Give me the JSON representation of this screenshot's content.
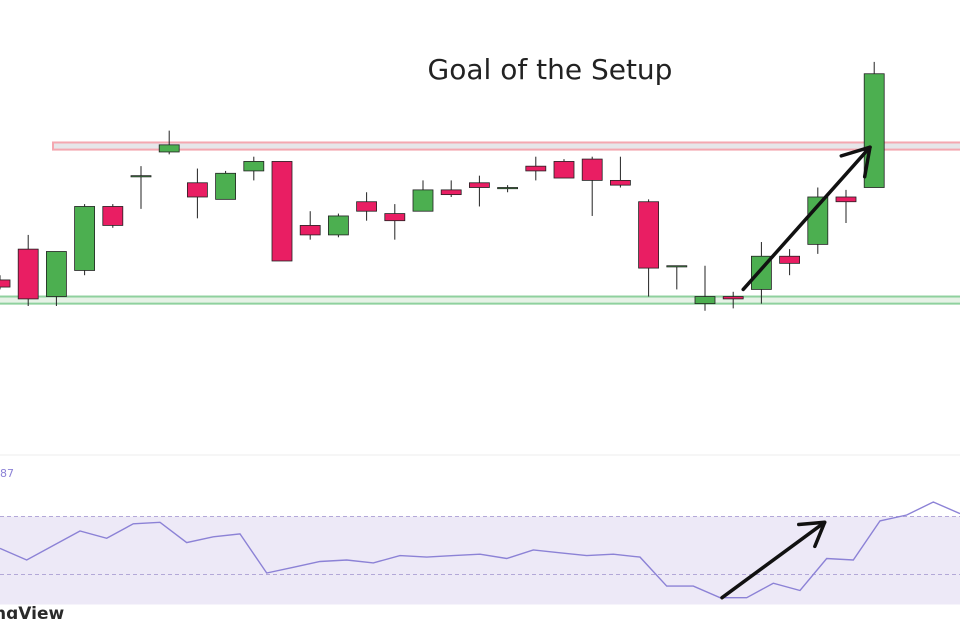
{
  "chart_data": [
    {
      "type": "candlestick",
      "title": "Goal of the Setup",
      "colors": {
        "up": "#4caf50",
        "down": "#e91e63",
        "wick": "#222222",
        "resistance": "#f4a7b0",
        "support": "#8fd19e"
      },
      "ylim": [
        0,
        100
      ],
      "resistance_zone": [
        93,
        96
      ],
      "support_zone": [
        28,
        31
      ],
      "candles": [
        {
          "o": 38,
          "h": 40,
          "l": 34,
          "c": 35
        },
        {
          "o": 51,
          "h": 57,
          "l": 27,
          "c": 30
        },
        {
          "o": 31,
          "h": 50,
          "l": 27,
          "c": 50
        },
        {
          "o": 42,
          "h": 70,
          "l": 40,
          "c": 69
        },
        {
          "o": 69,
          "h": 70,
          "l": 60,
          "c": 61
        },
        {
          "o": 82,
          "h": 86,
          "l": 68,
          "c": 82
        },
        {
          "o": 92,
          "h": 101,
          "l": 91,
          "c": 95
        },
        {
          "o": 79,
          "h": 85,
          "l": 64,
          "c": 73
        },
        {
          "o": 72,
          "h": 84,
          "l": 72,
          "c": 83
        },
        {
          "o": 84,
          "h": 90,
          "l": 80,
          "c": 88
        },
        {
          "o": 88,
          "h": 88,
          "l": 46,
          "c": 46
        },
        {
          "o": 61,
          "h": 67,
          "l": 55,
          "c": 57
        },
        {
          "o": 57,
          "h": 66,
          "l": 56,
          "c": 65
        },
        {
          "o": 71,
          "h": 75,
          "l": 63,
          "c": 67
        },
        {
          "o": 66,
          "h": 70,
          "l": 55,
          "c": 63
        },
        {
          "o": 67,
          "h": 80,
          "l": 67,
          "c": 76
        },
        {
          "o": 76,
          "h": 80,
          "l": 73,
          "c": 74
        },
        {
          "o": 79,
          "h": 82,
          "l": 69,
          "c": 77
        },
        {
          "o": 77,
          "h": 78,
          "l": 75,
          "c": 77
        },
        {
          "o": 86,
          "h": 90,
          "l": 80,
          "c": 84
        },
        {
          "o": 88,
          "h": 89,
          "l": 81,
          "c": 81
        },
        {
          "o": 89,
          "h": 90,
          "l": 65,
          "c": 80
        },
        {
          "o": 80,
          "h": 90,
          "l": 77,
          "c": 78
        },
        {
          "o": 71,
          "h": 72,
          "l": 31,
          "c": 43
        },
        {
          "o": 44,
          "h": 44,
          "l": 34,
          "c": 44
        },
        {
          "o": 28,
          "h": 44,
          "l": 25,
          "c": 31
        },
        {
          "o": 31,
          "h": 33,
          "l": 26,
          "c": 30
        },
        {
          "o": 34,
          "h": 54,
          "l": 28,
          "c": 48
        },
        {
          "o": 48,
          "h": 51,
          "l": 40,
          "c": 45
        },
        {
          "o": 53,
          "h": 77,
          "l": 49,
          "c": 73
        },
        {
          "o": 73,
          "h": 76,
          "l": 62,
          "c": 71
        },
        {
          "o": 77,
          "h": 130,
          "l": 77,
          "c": 125
        }
      ]
    },
    {
      "type": "line",
      "tick_label": "87",
      "colors": {
        "line": "#8c82d6",
        "band": "#ede9f7",
        "band_line": "#b3a8d8"
      },
      "ylim": [
        0,
        100
      ],
      "band": [
        30,
        70
      ],
      "values": [
        48,
        40,
        50,
        60,
        55,
        65,
        66,
        52,
        56,
        58,
        31,
        35,
        39,
        40,
        38,
        43,
        42,
        43,
        44,
        41,
        47,
        45,
        43,
        44,
        42,
        22,
        22,
        14,
        14,
        24,
        19,
        41,
        40,
        67,
        71,
        80,
        72
      ]
    }
  ],
  "watermark": "ngView"
}
